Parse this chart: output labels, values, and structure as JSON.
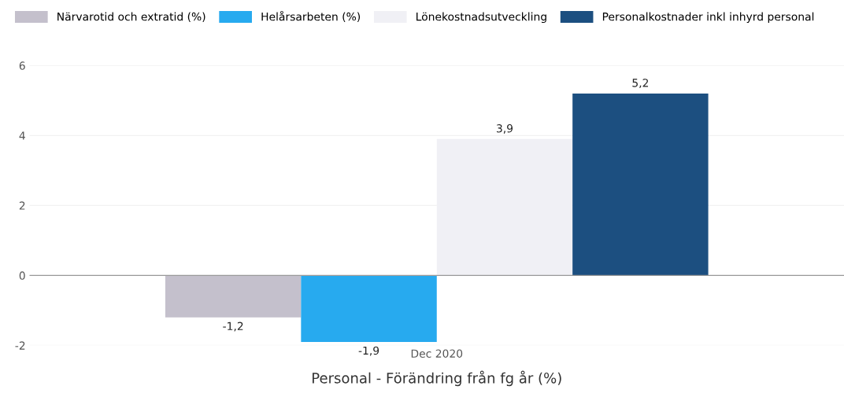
{
  "chart_data": {
    "type": "bar",
    "xlabel": "Personal - Förändring från fg år (%)",
    "categories": [
      "Dec 2020"
    ],
    "series": [
      {
        "name": "Närvarotid och extratid (%)",
        "color": "#c4c0cc",
        "values": [
          -1.2
        ],
        "value_labels": [
          "-1,2"
        ]
      },
      {
        "name": "Helårsarbeten (%)",
        "color": "#27aaef",
        "values": [
          -1.9
        ],
        "value_labels": [
          "-1,9"
        ]
      },
      {
        "name": "Lönekostnadsutveckling",
        "color": "#f0f0f5",
        "values": [
          3.9
        ],
        "value_labels": [
          "3,9"
        ]
      },
      {
        "name": "Personalkostnader inkl inhyrd personal",
        "color": "#1c4f80",
        "values": [
          5.2
        ],
        "value_labels": [
          "5,2"
        ]
      }
    ],
    "ylim": [
      -2,
      6
    ],
    "yticks": [
      -2,
      0,
      2,
      4,
      6
    ],
    "grid": "y",
    "legend": "top left"
  }
}
